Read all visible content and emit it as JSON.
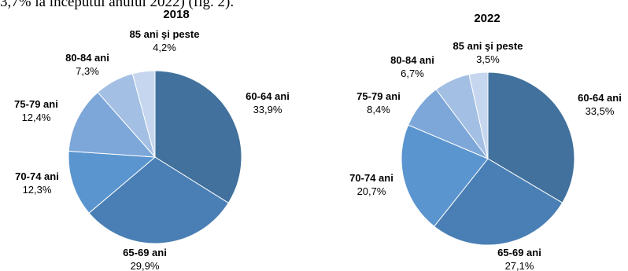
{
  "page": {
    "intro_text": "3,7% la inceputul anului 2022) (fig. 2)."
  },
  "chart_data": [
    {
      "type": "pie",
      "title": "2018",
      "categories": [
        "60-64 ani",
        "65-69 ani",
        "70-74 ani",
        "75-79 ani",
        "80-84 ani",
        "85 ani şi peste"
      ],
      "values": [
        33.9,
        29.9,
        12.3,
        12.4,
        7.3,
        4.2
      ],
      "value_labels": [
        "33,9%",
        "29,9%",
        "12,3%",
        "12,4%",
        "7,3%",
        "4,2%"
      ],
      "colors": [
        "#41719c",
        "#4a7fb5",
        "#5b95cf",
        "#7da7d9",
        "#a3bfe3",
        "#c6d6ef"
      ],
      "start": "12 o'clock",
      "direction": "clockwise"
    },
    {
      "type": "pie",
      "title": "2022",
      "categories": [
        "60-64 ani",
        "65-69 ani",
        "70-74 ani",
        "75-79 ani",
        "80-84 ani",
        "85 ani şi peste"
      ],
      "values": [
        33.5,
        27.1,
        20.7,
        8.4,
        6.7,
        3.5
      ],
      "value_labels": [
        "33,5%",
        "27,1%",
        "20,7%",
        "8,4%",
        "6,7%",
        "3,5%"
      ],
      "colors": [
        "#41719c",
        "#4a7fb5",
        "#5b95cf",
        "#7da7d9",
        "#a3bfe3",
        "#c6d6ef"
      ],
      "start": "12 o'clock",
      "direction": "clockwise"
    }
  ]
}
